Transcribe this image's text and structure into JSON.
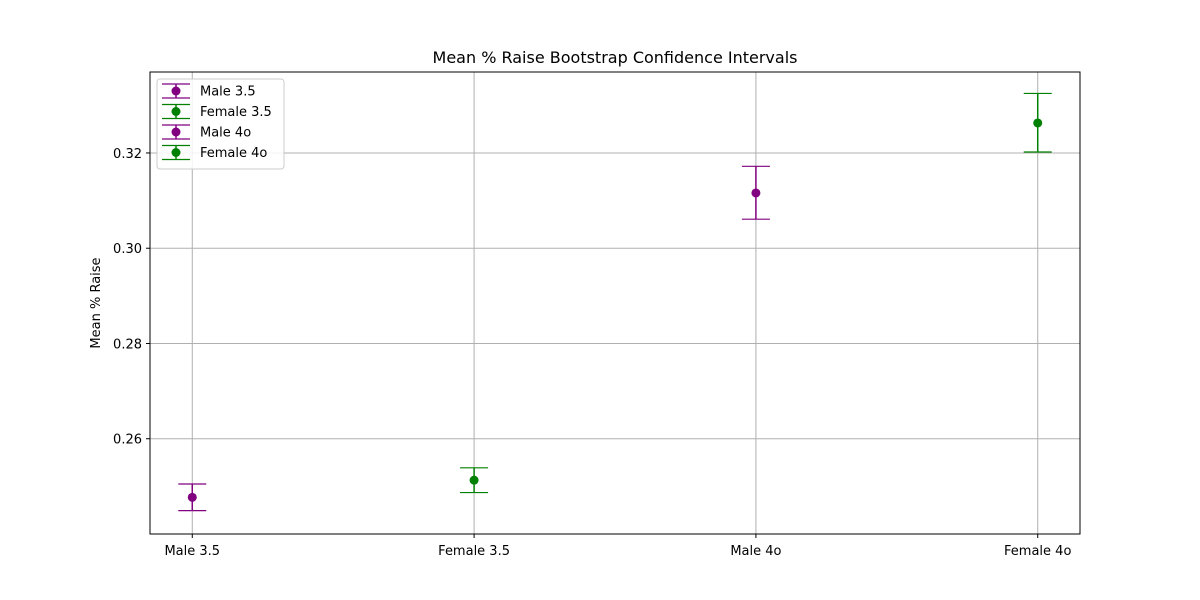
{
  "chart_data": {
    "type": "scatter",
    "title": "Mean % Raise Bootstrap Confidence Intervals",
    "xlabel": "",
    "ylabel": "Mean % Raise",
    "categories": [
      "Male 3.5",
      "Female 3.5",
      "Male 4o",
      "Female 4o"
    ],
    "ylim": [
      0.24,
      0.337
    ],
    "yticks": [
      0.26,
      0.28,
      0.3,
      0.32
    ],
    "ytick_labels": [
      "0.26",
      "0.28",
      "0.30",
      "0.32"
    ],
    "grid": true,
    "legend_position": "top-left",
    "series": [
      {
        "name": "Male 3.5",
        "category": "Male 3.5",
        "value": 0.2477,
        "lower": 0.2449,
        "upper": 0.2505,
        "color": "#800080"
      },
      {
        "name": "Female 3.5",
        "category": "Female 3.5",
        "value": 0.2513,
        "lower": 0.2487,
        "upper": 0.2539,
        "color": "#008000"
      },
      {
        "name": "Male 4o",
        "category": "Male 4o",
        "value": 0.3116,
        "lower": 0.3061,
        "upper": 0.3172,
        "color": "#800080"
      },
      {
        "name": "Female 4o",
        "category": "Female 4o",
        "value": 0.3263,
        "lower": 0.3202,
        "upper": 0.3325,
        "color": "#008000"
      }
    ]
  }
}
